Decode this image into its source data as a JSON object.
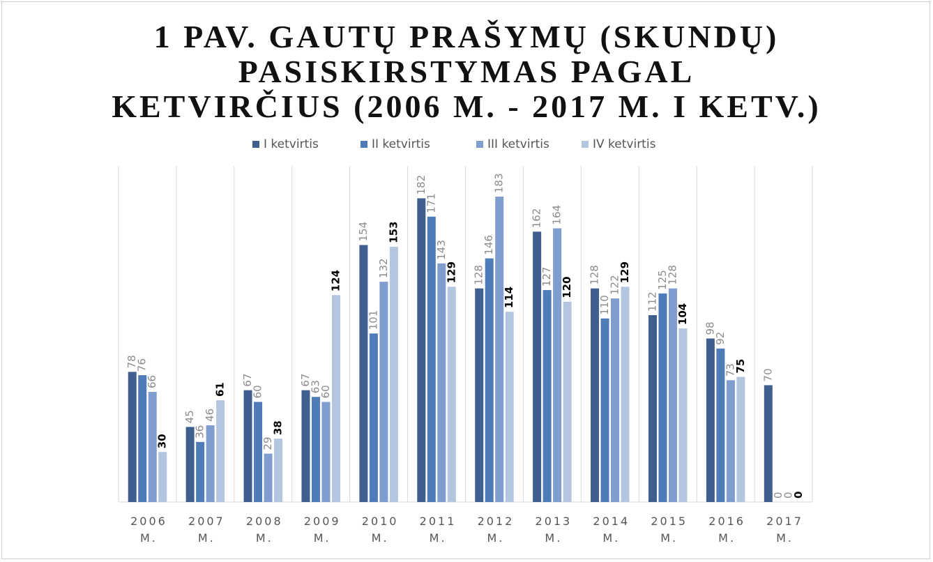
{
  "chart_data": {
    "type": "bar",
    "title": [
      "1 PAV. GAUTŲ PRAŠYMŲ (SKUNDŲ)",
      "PASISKIRSTYMAS PAGAL",
      "KETVIRČIUS (2006 M. - 2017 M. I KETV.)"
    ],
    "categories": [
      "2006 M.",
      "2007 M.",
      "2008 M.",
      "2009 M.",
      "2010 M.",
      "2011 M.",
      "2012 M.",
      "2013 M.",
      "2014 M.",
      "2015 M.",
      "2016 M.",
      "2017 M."
    ],
    "series": [
      {
        "name": "I ketvirtis",
        "color": "#3f5f8f",
        "values": [
          78,
          45,
          67,
          67,
          154,
          182,
          128,
          162,
          128,
          112,
          98,
          70
        ]
      },
      {
        "name": "II ketvirtis",
        "color": "#4f7cb8",
        "values": [
          76,
          36,
          60,
          63,
          101,
          171,
          146,
          127,
          110,
          125,
          92,
          0
        ]
      },
      {
        "name": "III ketvirtis",
        "color": "#7f9dcf",
        "values": [
          66,
          46,
          29,
          60,
          132,
          143,
          183,
          164,
          122,
          128,
          73,
          0
        ]
      },
      {
        "name": "IV ketvirtis",
        "color": "#b4c5e0",
        "values": [
          30,
          61,
          38,
          124,
          153,
          129,
          114,
          120,
          129,
          104,
          75,
          0
        ]
      }
    ],
    "legend": "top"
  }
}
